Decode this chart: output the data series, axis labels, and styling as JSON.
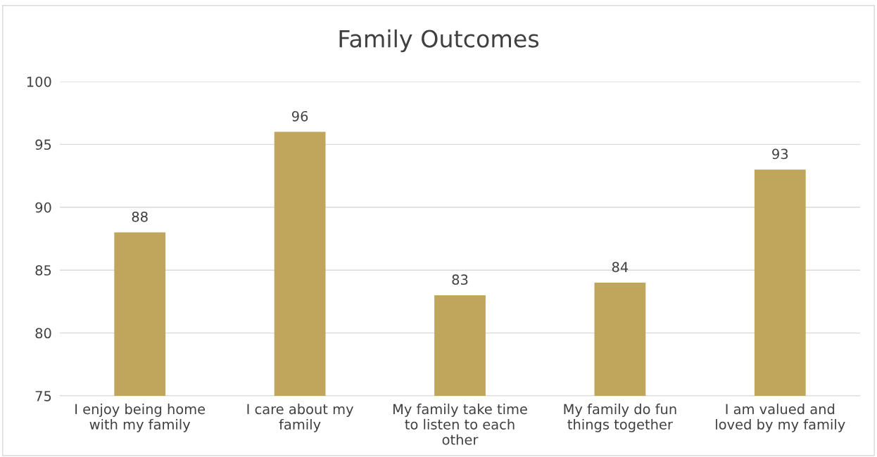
{
  "chart_data": {
    "type": "bar",
    "title": "Family Outcomes",
    "categories": [
      "I enjoy being home with my family",
      "I care about my family",
      "My family take time to listen to each other",
      "My family do fun things together",
      "I am valued and loved by my family"
    ],
    "values": [
      88,
      96,
      83,
      84,
      93
    ],
    "color": "#c0a55c",
    "ylim": [
      75,
      100
    ],
    "yticks": [
      75,
      80,
      85,
      90,
      95,
      100
    ],
    "grid": "y",
    "data_labels": true
  }
}
